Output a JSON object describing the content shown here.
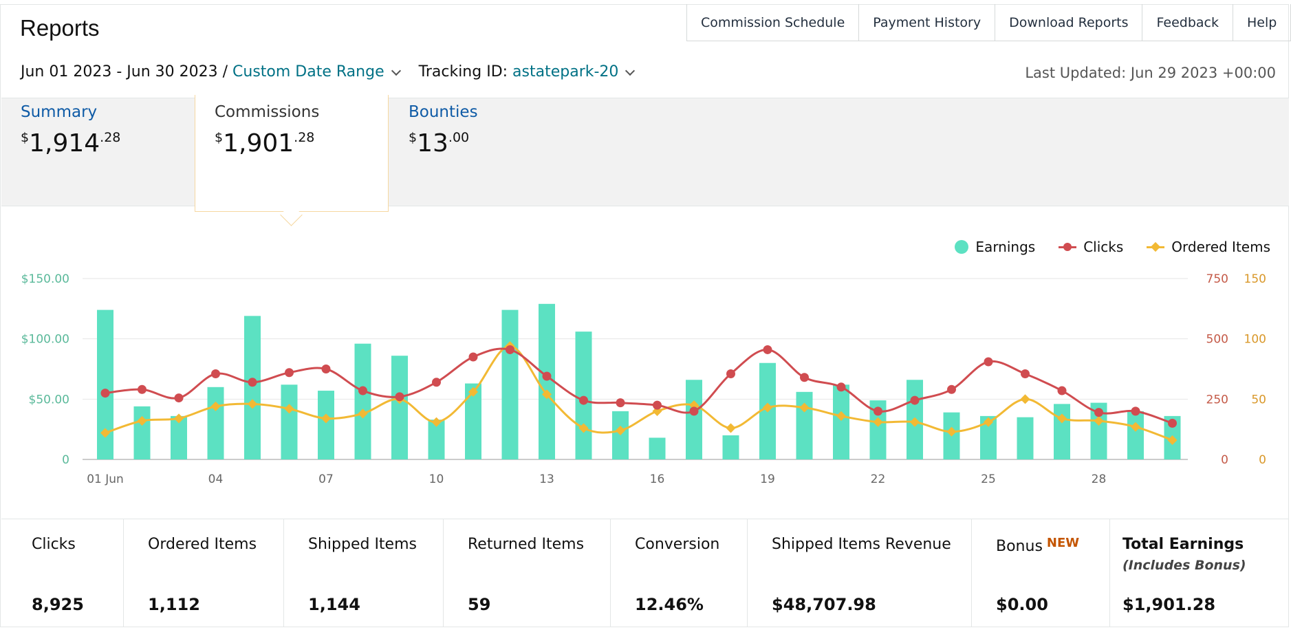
{
  "header": {
    "title": "Reports"
  },
  "topnav": [
    "Commission Schedule",
    "Payment History",
    "Download Reports",
    "Feedback",
    "Help"
  ],
  "filters": {
    "date_text": "Jun 01 2023 - Jun 30 2023 /",
    "date_range_link": "Custom Date Range",
    "tracking_label": "Tracking ID:",
    "tracking_value": "astatepark-20"
  },
  "last_updated": "Last Updated: Jun 29 2023 +00:00",
  "tabs": {
    "summary": {
      "label": "Summary",
      "currency": "$",
      "whole": "1,914",
      "cents": ".28"
    },
    "commissions": {
      "label": "Commissions",
      "currency": "$",
      "whole": "1,901",
      "cents": ".28"
    },
    "bounties": {
      "label": "Bounties",
      "currency": "$",
      "whole": "13",
      "cents": ".00"
    }
  },
  "legend": {
    "earnings": "Earnings",
    "clicks": "Clicks",
    "ordered": "Ordered Items"
  },
  "colors": {
    "earnings": "#5ce1c2",
    "clicks": "#d04c50",
    "ordered": "#f2b934",
    "left_axis": "#5ab99a",
    "right_axis1": "#c45a48",
    "right_axis2": "#d9982a",
    "link": "#007185"
  },
  "chart_data": {
    "type": "bar",
    "x": [
      "01 Jun",
      "02",
      "03",
      "04",
      "05",
      "06",
      "07",
      "08",
      "09",
      "10",
      "11",
      "12",
      "13",
      "14",
      "15",
      "16",
      "17",
      "18",
      "19",
      "20",
      "21",
      "22",
      "23",
      "24",
      "25",
      "26",
      "27",
      "28",
      "29",
      "30"
    ],
    "x_tick_labels": [
      "01 Jun",
      "04",
      "07",
      "10",
      "13",
      "16",
      "19",
      "22",
      "25",
      "28"
    ],
    "series": [
      {
        "name": "Earnings",
        "type": "bar",
        "axis": "left",
        "values": [
          124,
          44,
          36,
          60,
          119,
          62,
          57,
          96,
          86,
          33,
          63,
          124,
          129,
          106,
          40,
          18,
          66,
          20,
          80,
          56,
          62,
          49,
          66,
          39,
          36,
          35,
          46,
          47,
          40,
          36
        ]
      },
      {
        "name": "Clicks",
        "type": "line",
        "axis": "right1",
        "values": [
          275,
          290,
          255,
          355,
          320,
          360,
          375,
          285,
          260,
          320,
          425,
          455,
          345,
          245,
          235,
          225,
          200,
          355,
          455,
          340,
          300,
          200,
          245,
          290,
          405,
          355,
          285,
          195,
          200,
          150
        ]
      },
      {
        "name": "Ordered Items",
        "type": "line",
        "axis": "right2",
        "values": [
          22,
          32,
          34,
          44,
          46,
          42,
          34,
          38,
          50,
          31,
          56,
          94,
          54,
          26,
          24,
          40,
          45,
          26,
          43,
          43,
          36,
          31,
          31,
          23,
          31,
          50,
          34,
          32,
          27,
          16
        ]
      }
    ],
    "left_axis": {
      "ticks": [
        "0",
        "$50.00",
        "$100.00",
        "$150.00"
      ],
      "range": [
        0,
        150
      ]
    },
    "right_axis1": {
      "ticks": [
        "0",
        "250",
        "500",
        "750"
      ],
      "range": [
        0,
        750
      ]
    },
    "right_axis2": {
      "ticks": [
        "0",
        "50",
        "100",
        "150"
      ],
      "range": [
        0,
        150
      ]
    },
    "legend_position": "top-right",
    "grid": true
  },
  "stats": [
    {
      "label": "Clicks",
      "value": "8,925"
    },
    {
      "label": "Ordered Items",
      "value": "1,112"
    },
    {
      "label": "Shipped Items",
      "value": "1,144"
    },
    {
      "label": "Returned Items",
      "value": "59"
    },
    {
      "label": "Conversion",
      "value": "12.46%"
    },
    {
      "label": "Shipped Items Revenue",
      "value": "$48,707.98"
    },
    {
      "label": "Bonus",
      "badge": "NEW",
      "value": "$0.00"
    },
    {
      "label": "Total Earnings",
      "sub": "(Includes Bonus)",
      "value": "$1,901.28"
    }
  ]
}
